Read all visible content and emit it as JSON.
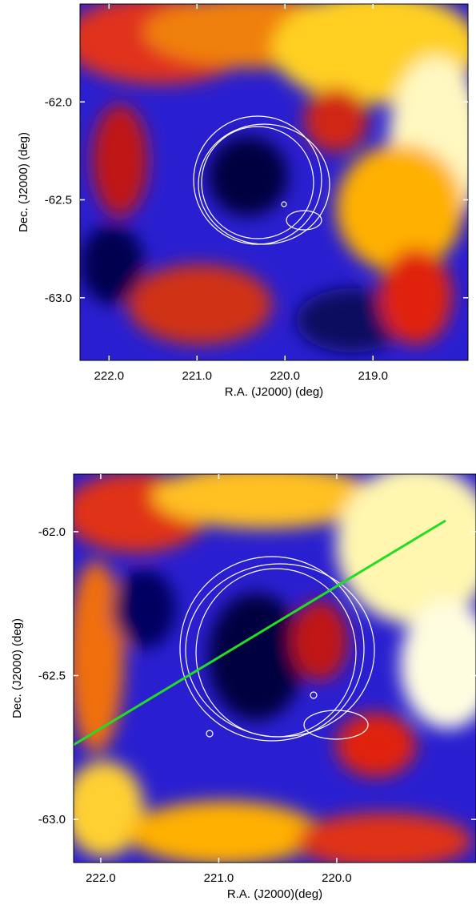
{
  "chart_data": [
    {
      "type": "image",
      "x_label": "R.A. (J2000) (deg)",
      "y_label": "Dec. (J2000) (deg)",
      "xlim": [
        222.33,
        217.92
      ],
      "ylim": [
        -63.32,
        -61.5
      ],
      "xticks": [
        {
          "value": 222,
          "label": "222.0"
        },
        {
          "value": 221,
          "label": "221.0"
        },
        {
          "value": 220,
          "label": "220.0"
        },
        {
          "value": 219,
          "label": "219.0"
        }
      ],
      "yticks": [
        {
          "value": -62,
          "label": "-62.0"
        },
        {
          "value": -62.5,
          "label": "-62.5"
        },
        {
          "value": -63,
          "label": "-63.0"
        }
      ]
    },
    {
      "type": "image",
      "x_label": "R.A. (J2000)(deg)",
      "y_label": "Dec. (J2000) (deg)",
      "xlim": [
        222.23,
        218.82
      ],
      "ylim": [
        -63.15,
        -61.8
      ],
      "xticks": [
        {
          "value": 222,
          "label": "222.0"
        },
        {
          "value": 221,
          "label": "221.0"
        },
        {
          "value": 220,
          "label": "220.0"
        }
      ],
      "yticks": [
        {
          "value": -62,
          "label": "-62.0"
        },
        {
          "value": -62.5,
          "label": "-62.5"
        },
        {
          "value": -63,
          "label": "-63.0"
        }
      ]
    }
  ]
}
